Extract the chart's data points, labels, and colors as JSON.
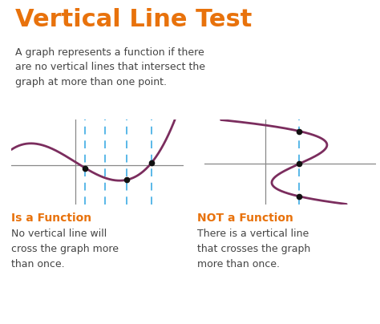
{
  "title": "Vertical Line Test",
  "title_color": "#E8720C",
  "subtitle": "A graph represents a function if there\nare no vertical lines that intersect the\ngraph at more than one point.",
  "subtitle_color": "#444444",
  "bg_color": "#ffffff",
  "curve_color": "#7B2D5E",
  "axis_color": "#888888",
  "dashed_line_color": "#59B8E8",
  "dot_color": "#111111",
  "left_label": "Is a Function",
  "left_label_color": "#E8720C",
  "left_desc": "No vertical line will\ncross the graph more\nthan once.",
  "left_desc_color": "#444444",
  "right_label": "NOT a Function",
  "right_label_color": "#E8720C",
  "right_desc": "There is a vertical line\nthat crosses the graph\nmore than once.",
  "right_desc_color": "#444444",
  "title_fontsize": 22,
  "subtitle_fontsize": 9,
  "label_fontsize": 10,
  "desc_fontsize": 9
}
